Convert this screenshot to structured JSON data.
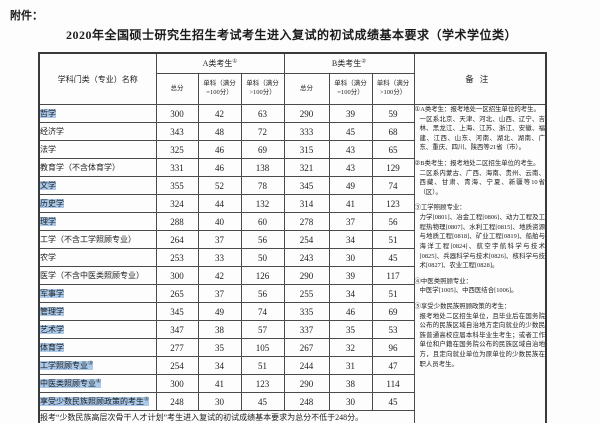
{
  "page": {
    "attachment_label": "附件：",
    "title": "2020年全国硕士研究生招生考试考生进入复试的初试成绩基本要求（学术学位类）"
  },
  "table": {
    "header": {
      "subject_col": "学科门类（专业）名称",
      "group_a": {
        "label": "A类考生",
        "sup": "①"
      },
      "group_b": {
        "label": "B类考生",
        "sup": "②"
      },
      "remark_col": "备注",
      "sub_columns": [
        "总分",
        "单科（满分=100分）",
        "单科（满分>100分）"
      ]
    },
    "rows": [
      {
        "label": "哲学",
        "sup": "",
        "highlight": true,
        "a": [
          300,
          42,
          63
        ],
        "b": [
          290,
          39,
          59
        ]
      },
      {
        "label": "经济学",
        "sup": "",
        "highlight": false,
        "a": [
          343,
          48,
          72
        ],
        "b": [
          333,
          45,
          68
        ]
      },
      {
        "label": "法学",
        "sup": "",
        "highlight": false,
        "a": [
          325,
          46,
          69
        ],
        "b": [
          315,
          43,
          65
        ]
      },
      {
        "label": "教育学（不含体育学）",
        "sup": "",
        "highlight": false,
        "a": [
          331,
          46,
          138
        ],
        "b": [
          321,
          43,
          129
        ]
      },
      {
        "label": "文学",
        "sup": "",
        "highlight": true,
        "a": [
          355,
          52,
          78
        ],
        "b": [
          345,
          49,
          74
        ]
      },
      {
        "label": "历史学",
        "sup": "",
        "highlight": true,
        "a": [
          324,
          44,
          132
        ],
        "b": [
          314,
          41,
          123
        ]
      },
      {
        "label": "理学",
        "sup": "",
        "highlight": true,
        "a": [
          288,
          40,
          60
        ],
        "b": [
          278,
          37,
          56
        ]
      },
      {
        "label": "工学（不含工学照顾专业）",
        "sup": "",
        "highlight": false,
        "a": [
          264,
          37,
          56
        ],
        "b": [
          254,
          34,
          51
        ]
      },
      {
        "label": "农学",
        "sup": "",
        "highlight": false,
        "a": [
          253,
          33,
          50
        ],
        "b": [
          243,
          30,
          45
        ]
      },
      {
        "label": "医学（不含中医类照顾专业）",
        "sup": "",
        "highlight": false,
        "a": [
          300,
          42,
          126
        ],
        "b": [
          290,
          39,
          117
        ]
      },
      {
        "label": "军事学",
        "sup": "",
        "highlight": true,
        "a": [
          265,
          37,
          56
        ],
        "b": [
          255,
          34,
          51
        ]
      },
      {
        "label": "管理学",
        "sup": "",
        "highlight": true,
        "a": [
          345,
          49,
          74
        ],
        "b": [
          335,
          46,
          69
        ]
      },
      {
        "label": "艺术学",
        "sup": "",
        "highlight": true,
        "a": [
          347,
          38,
          57
        ],
        "b": [
          337,
          35,
          53
        ]
      },
      {
        "label": "体育学",
        "sup": "",
        "highlight": true,
        "a": [
          277,
          35,
          105
        ],
        "b": [
          267,
          32,
          96
        ]
      },
      {
        "label": "工学照顾专业",
        "sup": "③",
        "highlight": true,
        "a": [
          254,
          34,
          51
        ],
        "b": [
          244,
          31,
          47
        ]
      },
      {
        "label": "中医类照顾专业",
        "sup": "④",
        "highlight": true,
        "a": [
          300,
          41,
          123
        ],
        "b": [
          290,
          38,
          114
        ]
      },
      {
        "label": "享受少数民族照顾政策的考生",
        "sup": "⑤",
        "highlight": true,
        "a": [
          248,
          30,
          45
        ],
        "b": [
          248,
          30,
          45
        ]
      }
    ],
    "remarks": [
      {
        "head": "①A类考生：报考地处一区招生单位的考生。",
        "body": "一区系北京、天津、河北、山西、辽宁、吉林、黑龙江、上海、江苏、浙江、安徽、福建、江西、山东、河南、湖北、湖南、广东、重庆、四川、陕西等21省（市）。"
      },
      {
        "head": "②B类考生：报考地处二区招生单位的考生。",
        "body": "二区系内蒙古、广西、海南、贵州、云南、西藏、甘肃、青海、宁夏、新疆等10省（区）。"
      },
      {
        "head": "③工学照顾专业：",
        "body": "力学[0801]、冶金工程[0806]、动力工程及工程热物理[0807]、水利工程[0815]、地质资源与地质工程[0818]、矿业工程[0819]、船舶与海洋工程[0824]、航空宇航科学与技术[0825]、兵器科学与技术[0826]、核科学与技术[0827]、农业工程[0828]。"
      },
      {
        "head": "④中医类照顾专业：",
        "body": "中医学[1005]、中西医结合[1006]。"
      },
      {
        "head": "⑤享受少数民族照顾政策的考生：",
        "body": "报考地处二区招生单位，且毕业后在国务院公布的民族区域自治地方定向就业的少数民族普通高校应届本科毕业生考生；或者工作单位和户籍在国务院公布的民族区域自治地方，且定向就业单位为原单位的少数民族在职人员考生。"
      }
    ],
    "footnote": "报考“少数民族高层次骨干人才计划”考生进入复试的初试成绩基本要求为总分不低于248分。"
  },
  "colors": {
    "highlight": "#a9c8ea",
    "border": "#4a4a4a",
    "text": "#1c1c1c",
    "paper": "#fdfdfd"
  }
}
